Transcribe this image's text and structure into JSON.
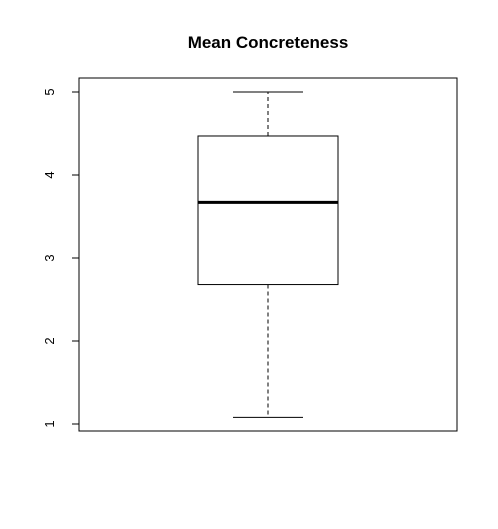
{
  "chart_data": {
    "type": "box",
    "title": "Mean Concreteness",
    "xlabel": "",
    "ylabel": "",
    "ylim": [
      1,
      5
    ],
    "yticks": [
      1,
      2,
      3,
      4,
      5
    ],
    "box": {
      "min": 1.08,
      "q1": 2.68,
      "median": 3.67,
      "q3": 4.47,
      "max": 5.0
    },
    "grid": false
  }
}
